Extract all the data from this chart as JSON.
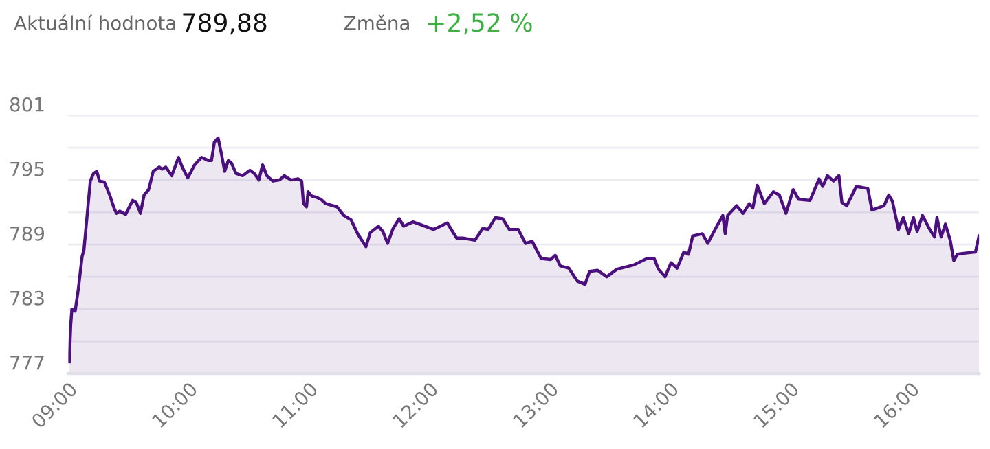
{
  "chart_data": {
    "type": "area",
    "annotations": [
      "Aktuální hodnota",
      "789,88",
      "Změna",
      "+2,52 %"
    ],
    "x": [
      9.008,
      9.02,
      9.03,
      9.057,
      9.084,
      9.115,
      9.13,
      9.183,
      9.21,
      9.237,
      9.26,
      9.3,
      9.344,
      9.38,
      9.4,
      9.427,
      9.477,
      9.535,
      9.565,
      9.6,
      9.63,
      9.668,
      9.706,
      9.756,
      9.78,
      9.81,
      9.86,
      9.916,
      9.947,
      9.993,
      10.05,
      10.107,
      10.165,
      10.19,
      10.214,
      10.245,
      10.275,
      10.3,
      10.33,
      10.355,
      10.394,
      10.45,
      10.51,
      10.546,
      10.584,
      10.615,
      10.65,
      10.7,
      10.756,
      10.795,
      10.85,
      10.91,
      10.94,
      10.955,
      10.98,
      10.993,
      11.024,
      11.06,
      11.1,
      11.14,
      11.17,
      11.234,
      11.29,
      11.35,
      11.405,
      11.474,
      11.51,
      11.577,
      11.615,
      11.654,
      11.7,
      11.75,
      11.787,
      11.864,
      11.94,
      12.035,
      12.15,
      12.227,
      12.28,
      12.38,
      12.445,
      12.49,
      12.55,
      12.61,
      12.665,
      12.74,
      12.8,
      12.855,
      12.93,
      13.008,
      13.047,
      13.09,
      13.16,
      13.23,
      13.295,
      13.333,
      13.4,
      13.475,
      13.56,
      13.7,
      13.81,
      13.87,
      13.905,
      13.96,
      14.01,
      14.06,
      14.116,
      14.155,
      14.19,
      14.27,
      14.315,
      14.4,
      14.44,
      14.46,
      14.48,
      14.555,
      14.61,
      14.66,
      14.69,
      14.727,
      14.785,
      14.86,
      14.91,
      14.965,
      15.025,
      15.07,
      15.165,
      15.24,
      15.27,
      15.31,
      15.36,
      15.405,
      15.43,
      15.47,
      15.55,
      15.645,
      15.68,
      15.78,
      15.82,
      15.85,
      15.9,
      15.94,
      15.985,
      16.025,
      16.055,
      16.1,
      16.16,
      16.2,
      16.22,
      16.255,
      16.29,
      16.33,
      16.36,
      16.39,
      16.455,
      16.54,
      16.57
    ],
    "series": [
      {
        "color": "#4b0f7e",
        "values": [
          778.1,
          781.5,
          783.0,
          782.8,
          784.9,
          787.9,
          788.5,
          794.9,
          795.6,
          795.8,
          794.9,
          794.8,
          793.6,
          792.4,
          791.9,
          792.1,
          791.8,
          793.1,
          792.9,
          791.9,
          793.6,
          794.1,
          795.8,
          796.2,
          796.0,
          796.2,
          795.4,
          797.1,
          796.2,
          795.2,
          796.4,
          797.1,
          796.8,
          796.8,
          798.5,
          798.9,
          797.3,
          795.8,
          796.8,
          796.6,
          795.6,
          795.4,
          795.9,
          795.6,
          795.0,
          796.4,
          795.4,
          794.9,
          795.0,
          795.4,
          795.0,
          795.1,
          794.9,
          792.8,
          792.5,
          793.9,
          793.5,
          793.4,
          793.2,
          792.8,
          792.7,
          792.5,
          791.7,
          791.3,
          790.0,
          788.8,
          790.1,
          790.7,
          790.2,
          789.1,
          790.5,
          791.4,
          790.7,
          791.1,
          790.8,
          790.4,
          791.0,
          789.6,
          789.6,
          789.4,
          790.5,
          790.4,
          791.5,
          791.4,
          790.4,
          790.4,
          789.1,
          789.3,
          787.7,
          787.6,
          788.0,
          787.0,
          786.8,
          785.6,
          785.3,
          786.5,
          786.6,
          786.0,
          786.7,
          787.1,
          787.7,
          787.7,
          786.7,
          786.0,
          787.3,
          786.8,
          788.3,
          788.1,
          789.8,
          790.0,
          789.1,
          790.9,
          791.7,
          790.0,
          791.7,
          792.6,
          791.9,
          792.8,
          792.4,
          794.5,
          792.8,
          793.9,
          793.6,
          791.9,
          794.1,
          793.2,
          793.1,
          795.1,
          794.4,
          795.4,
          794.9,
          795.4,
          792.9,
          792.6,
          794.4,
          794.2,
          792.2,
          792.6,
          793.6,
          793.0,
          790.4,
          791.5,
          790.0,
          791.5,
          790.2,
          791.7,
          790.4,
          789.7,
          791.5,
          789.7,
          790.9,
          789.4,
          787.5,
          788.1,
          788.2,
          788.3,
          789.8
        ]
      }
    ],
    "xlim": [
      9,
      16.57
    ],
    "xticks": [
      {
        "value": 9,
        "label": "09:00"
      },
      {
        "value": 10,
        "label": "10:00"
      },
      {
        "value": 11,
        "label": "11:00"
      },
      {
        "value": 12,
        "label": "12:00"
      },
      {
        "value": 13,
        "label": "13:00"
      },
      {
        "value": 14,
        "label": "14:00"
      },
      {
        "value": 15,
        "label": "15:00"
      },
      {
        "value": 16,
        "label": "16:00"
      }
    ],
    "ylim": [
      777,
      801
    ],
    "yticks": [
      777,
      {
        "value": 780,
        "label": null
      },
      783,
      {
        "value": 786,
        "label": null
      },
      789,
      {
        "value": 792,
        "label": null
      },
      795,
      {
        "value": 798,
        "label": null
      },
      801
    ],
    "grid": "y",
    "legend": false
  }
}
